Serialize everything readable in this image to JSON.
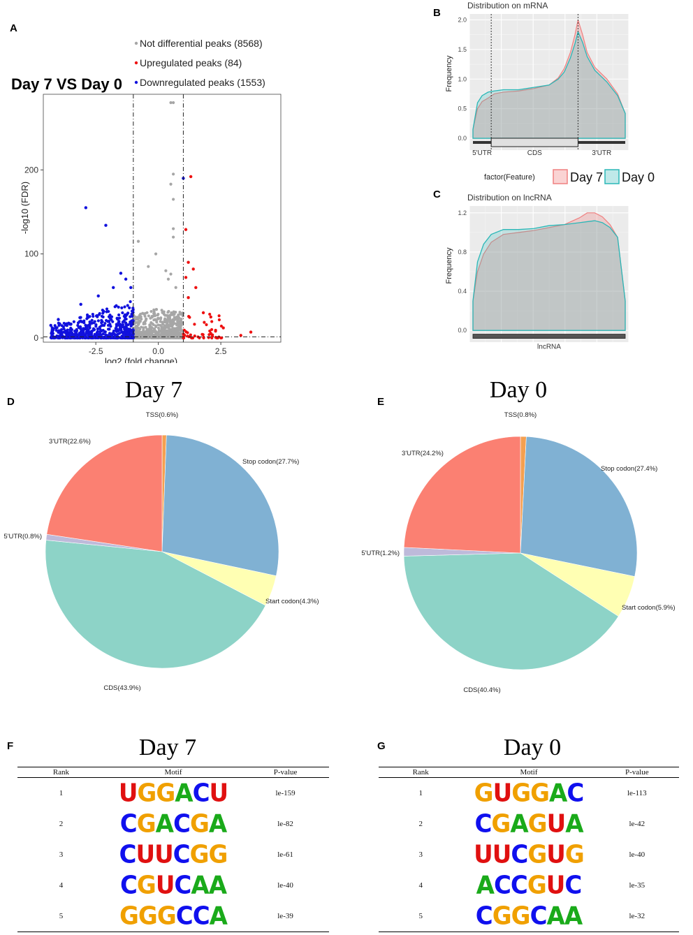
{
  "colors": {
    "A": "#1aaa1a",
    "C": "#1010ee",
    "G": "#f0a000",
    "U": "#e01010",
    "grey": "#a6a6a6",
    "up": "#ee1111",
    "down": "#1111dd",
    "day7": "#f08080",
    "day0": "#2ab7b7"
  },
  "panels": {
    "A": "A",
    "B": "B",
    "C": "C",
    "D": "D",
    "E": "E",
    "F": "F",
    "G": "G"
  },
  "chart_data": [
    {
      "id": "A",
      "type": "scatter",
      "title": "Day 7 VS Day 0",
      "xlabel": "log2 (fold change)",
      "ylabel": "-log10 (FDR)",
      "xlim": [
        -4.6,
        4.9
      ],
      "ylim": [
        -5,
        290
      ],
      "xticks": [
        -2.5,
        0.0,
        2.5
      ],
      "xtick_labels": [
        "-2.5",
        "0.0",
        "2.5"
      ],
      "yticks": [
        0,
        100,
        200
      ],
      "ytick_labels": [
        "0",
        "100",
        "200"
      ],
      "vlines": [
        -1,
        1
      ],
      "hline": 1.3,
      "legend": [
        {
          "label": "Not differential peaks (8568)",
          "color": "#a6a6a6"
        },
        {
          "label": "Upregulated peaks (84)",
          "color": "#ee1111"
        },
        {
          "label": "Downregulated peaks (1553)",
          "color": "#1111dd"
        }
      ],
      "highlight_points": {
        "grey": [
          [
            0.5,
            280
          ],
          [
            0.6,
            280
          ],
          [
            0.6,
            195
          ],
          [
            0.5,
            183
          ],
          [
            0.6,
            165
          ],
          [
            -0.8,
            115
          ],
          [
            -0.1,
            100
          ],
          [
            0.6,
            130
          ],
          [
            0.6,
            120
          ],
          [
            0.3,
            80
          ],
          [
            0.5,
            76
          ],
          [
            0.4,
            70
          ],
          [
            -0.4,
            85
          ],
          [
            0.7,
            60
          ]
        ],
        "up": [
          [
            1.3,
            192
          ],
          [
            1.1,
            129
          ],
          [
            1.2,
            90
          ],
          [
            1.4,
            82
          ],
          [
            1.1,
            72
          ],
          [
            1.5,
            60
          ],
          [
            1.2,
            48
          ],
          [
            1.8,
            30
          ],
          [
            2.1,
            25
          ],
          [
            2.6,
            12
          ],
          [
            3.7,
            7
          ],
          [
            3.3,
            3
          ]
        ],
        "down": [
          [
            1.0,
            190
          ],
          [
            -2.9,
            155
          ],
          [
            -2.1,
            134
          ],
          [
            -1.5,
            77
          ],
          [
            -1.3,
            70
          ],
          [
            -1.1,
            60
          ],
          [
            -1.8,
            60
          ],
          [
            -2.4,
            50
          ],
          [
            -3.1,
            40
          ],
          [
            -4.0,
            22
          ],
          [
            -4.3,
            15
          ]
        ]
      }
    },
    {
      "id": "B",
      "type": "area",
      "title": "Distribution on mRNA",
      "ylabel": "Frequency",
      "ylim": [
        -0.2,
        2.1
      ],
      "yticks": [
        0.0,
        0.5,
        1.0,
        1.5,
        2.0
      ],
      "ytick_labels": [
        "0.0",
        "0.5",
        "1.0",
        "1.5",
        "2.0"
      ],
      "regions": [
        "5'UTR",
        "CDS",
        "3'UTR"
      ],
      "region_bounds": [
        0,
        0.12,
        0.69,
        1.0
      ],
      "x": [
        0,
        0.03,
        0.06,
        0.1,
        0.14,
        0.2,
        0.3,
        0.4,
        0.5,
        0.56,
        0.6,
        0.64,
        0.67,
        0.69,
        0.72,
        0.75,
        0.8,
        0.88,
        0.95,
        1.0
      ],
      "series": [
        {
          "name": "Day 7",
          "values": [
            0.15,
            0.5,
            0.62,
            0.68,
            0.75,
            0.78,
            0.8,
            0.84,
            0.9,
            1.02,
            1.18,
            1.45,
            1.75,
            2.0,
            1.75,
            1.45,
            1.2,
            1.0,
            0.75,
            0.42
          ]
        },
        {
          "name": "Day 0",
          "values": [
            0.15,
            0.6,
            0.72,
            0.78,
            0.8,
            0.82,
            0.82,
            0.86,
            0.9,
            1.0,
            1.12,
            1.36,
            1.6,
            1.8,
            1.62,
            1.38,
            1.15,
            0.95,
            0.72,
            0.42
          ]
        }
      ],
      "legend_title": "factor(Feature)"
    },
    {
      "id": "C",
      "type": "area",
      "title": "Distribution on lncRNA",
      "ylabel": "Frequency",
      "ylim": [
        -0.12,
        1.27
      ],
      "yticks": [
        0.0,
        0.4,
        0.8,
        1.2
      ],
      "ytick_labels": [
        "0.0",
        "0.4",
        "0.8",
        "1.2"
      ],
      "regions": [
        "lncRNA"
      ],
      "x": [
        0,
        0.03,
        0.07,
        0.12,
        0.2,
        0.3,
        0.4,
        0.5,
        0.6,
        0.7,
        0.75,
        0.8,
        0.85,
        0.9,
        0.95,
        1.0
      ],
      "series": [
        {
          "name": "Day 7",
          "values": [
            0.3,
            0.6,
            0.78,
            0.9,
            0.98,
            1.0,
            1.02,
            1.05,
            1.08,
            1.15,
            1.2,
            1.2,
            1.16,
            1.08,
            0.95,
            0.3
          ]
        },
        {
          "name": "Day 0",
          "values": [
            0.3,
            0.7,
            0.88,
            0.98,
            1.03,
            1.03,
            1.04,
            1.07,
            1.08,
            1.1,
            1.11,
            1.12,
            1.1,
            1.05,
            0.95,
            0.3
          ]
        }
      ]
    },
    {
      "id": "D",
      "type": "pie",
      "title": "Day 7",
      "slices": [
        {
          "label": "TSS(0.6%)",
          "value": 0.6,
          "color": "#f5a050"
        },
        {
          "label": "Stop codon(27.7%)",
          "value": 27.7,
          "color": "#80b1d3"
        },
        {
          "label": "Start codon(4.3%)",
          "value": 4.3,
          "color": "#ffffb3"
        },
        {
          "label": "CDS(43.9%)",
          "value": 43.9,
          "color": "#8dd3c7"
        },
        {
          "label": "5'UTR(0.8%)",
          "value": 0.8,
          "color": "#bebada"
        },
        {
          "label": "3'UTR(22.6%)",
          "value": 22.6,
          "color": "#fb8072"
        }
      ]
    },
    {
      "id": "E",
      "type": "pie",
      "title": "Day 0",
      "slices": [
        {
          "label": "TSS(0.8%)",
          "value": 0.8,
          "color": "#f5a050"
        },
        {
          "label": "Stop codon(27.4%)",
          "value": 27.4,
          "color": "#80b1d3"
        },
        {
          "label": "Start codon(5.9%)",
          "value": 5.9,
          "color": "#ffffb3"
        },
        {
          "label": "CDS(40.4%)",
          "value": 40.4,
          "color": "#8dd3c7"
        },
        {
          "label": "5'UTR(1.2%)",
          "value": 1.2,
          "color": "#bebada"
        },
        {
          "label": "3'UTR(24.2%)",
          "value": 24.2,
          "color": "#fb8072"
        }
      ]
    },
    {
      "id": "F",
      "type": "table",
      "title": "Day 7",
      "columns": [
        "Rank",
        "Motif",
        "P-value"
      ],
      "rows": [
        {
          "rank": "1",
          "motif": "UGGACU",
          "p": "le-159"
        },
        {
          "rank": "2",
          "motif": "CGACGA",
          "p": "le-82"
        },
        {
          "rank": "3",
          "motif": "CUUCGG",
          "p": "le-61"
        },
        {
          "rank": "4",
          "motif": "CGUCAA",
          "p": "le-40"
        },
        {
          "rank": "5",
          "motif": "GGGCCA",
          "p": "le-39"
        }
      ]
    },
    {
      "id": "G",
      "type": "table",
      "title": "Day 0",
      "columns": [
        "Rank",
        "Motif",
        "P-value"
      ],
      "rows": [
        {
          "rank": "1",
          "motif": "GUGGAC",
          "p": "le-113"
        },
        {
          "rank": "2",
          "motif": "CGAGUA",
          "p": "le-42"
        },
        {
          "rank": "3",
          "motif": "UUCGUG",
          "p": "le-40"
        },
        {
          "rank": "4",
          "motif": "ACCGUC",
          "p": "le-35"
        },
        {
          "rank": "5",
          "motif": "CGGCAA",
          "p": "le-32"
        }
      ]
    }
  ]
}
